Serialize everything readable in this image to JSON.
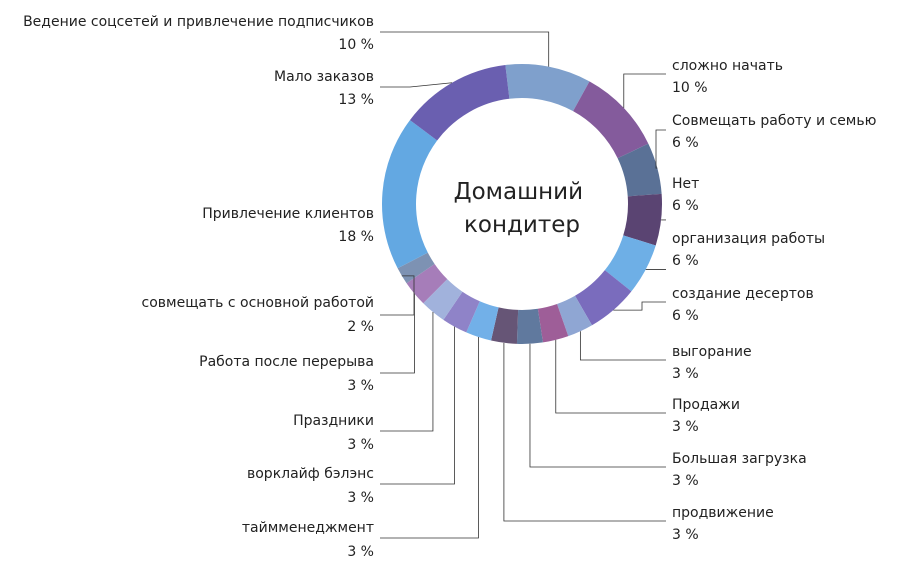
{
  "chart_data": {
    "type": "pie",
    "variant": "donut",
    "center_label": [
      "Домашний",
      "кондитер"
    ],
    "slices": [
      {
        "label": "Ведение соцсетей и привлечение подписчиков",
        "value": 10,
        "value_label": "10 %",
        "color": "#7fa0cc"
      },
      {
        "label": "сложно начать",
        "value": 10,
        "value_label": "10 %",
        "color": "#845b9c"
      },
      {
        "label": "Совмещать работу и семью",
        "value": 6,
        "value_label": "6 %",
        "color": "#5a7196"
      },
      {
        "label": "Нет",
        "value": 6,
        "value_label": "6 %",
        "color": "#5a4472"
      },
      {
        "label": "организация работы",
        "value": 6,
        "value_label": "6 %",
        "color": "#6eafe6"
      },
      {
        "label": "создание десертов",
        "value": 6,
        "value_label": "6 %",
        "color": "#7a6cbd"
      },
      {
        "label": "выгорание",
        "value": 3,
        "value_label": "3 %",
        "color": "#8fa6d3"
      },
      {
        "label": "Продажи",
        "value": 3,
        "value_label": "3 %",
        "color": "#9e5e98"
      },
      {
        "label": "Большая загрузка",
        "value": 3,
        "value_label": "3 %",
        "color": "#60799e"
      },
      {
        "label": "продвижение",
        "value": 3,
        "value_label": "3 %",
        "color": "#665576"
      },
      {
        "label": "таймменеджмент",
        "value": 3,
        "value_label": "3 %",
        "color": "#72b0e8"
      },
      {
        "label": "ворклайф бэлэнс",
        "value": 3,
        "value_label": "3 %",
        "color": "#8f83c8"
      },
      {
        "label": "Праздники",
        "value": 3,
        "value_label": "3 %",
        "color": "#a1b2dc"
      },
      {
        "label": "Работа после перерыва",
        "value": 3,
        "value_label": "3 %",
        "color": "#a67db9"
      },
      {
        "label": "совмещать с основной работой",
        "value": 2,
        "value_label": "2 %",
        "color": "#7d92b3"
      },
      {
        "label": "Привлечение клиентов",
        "value": 18,
        "value_label": "18 %",
        "color": "#63a8e2"
      },
      {
        "label": "Мало заказов",
        "value": 13,
        "value_label": "13 %",
        "color": "#6a5fb0"
      }
    ]
  }
}
